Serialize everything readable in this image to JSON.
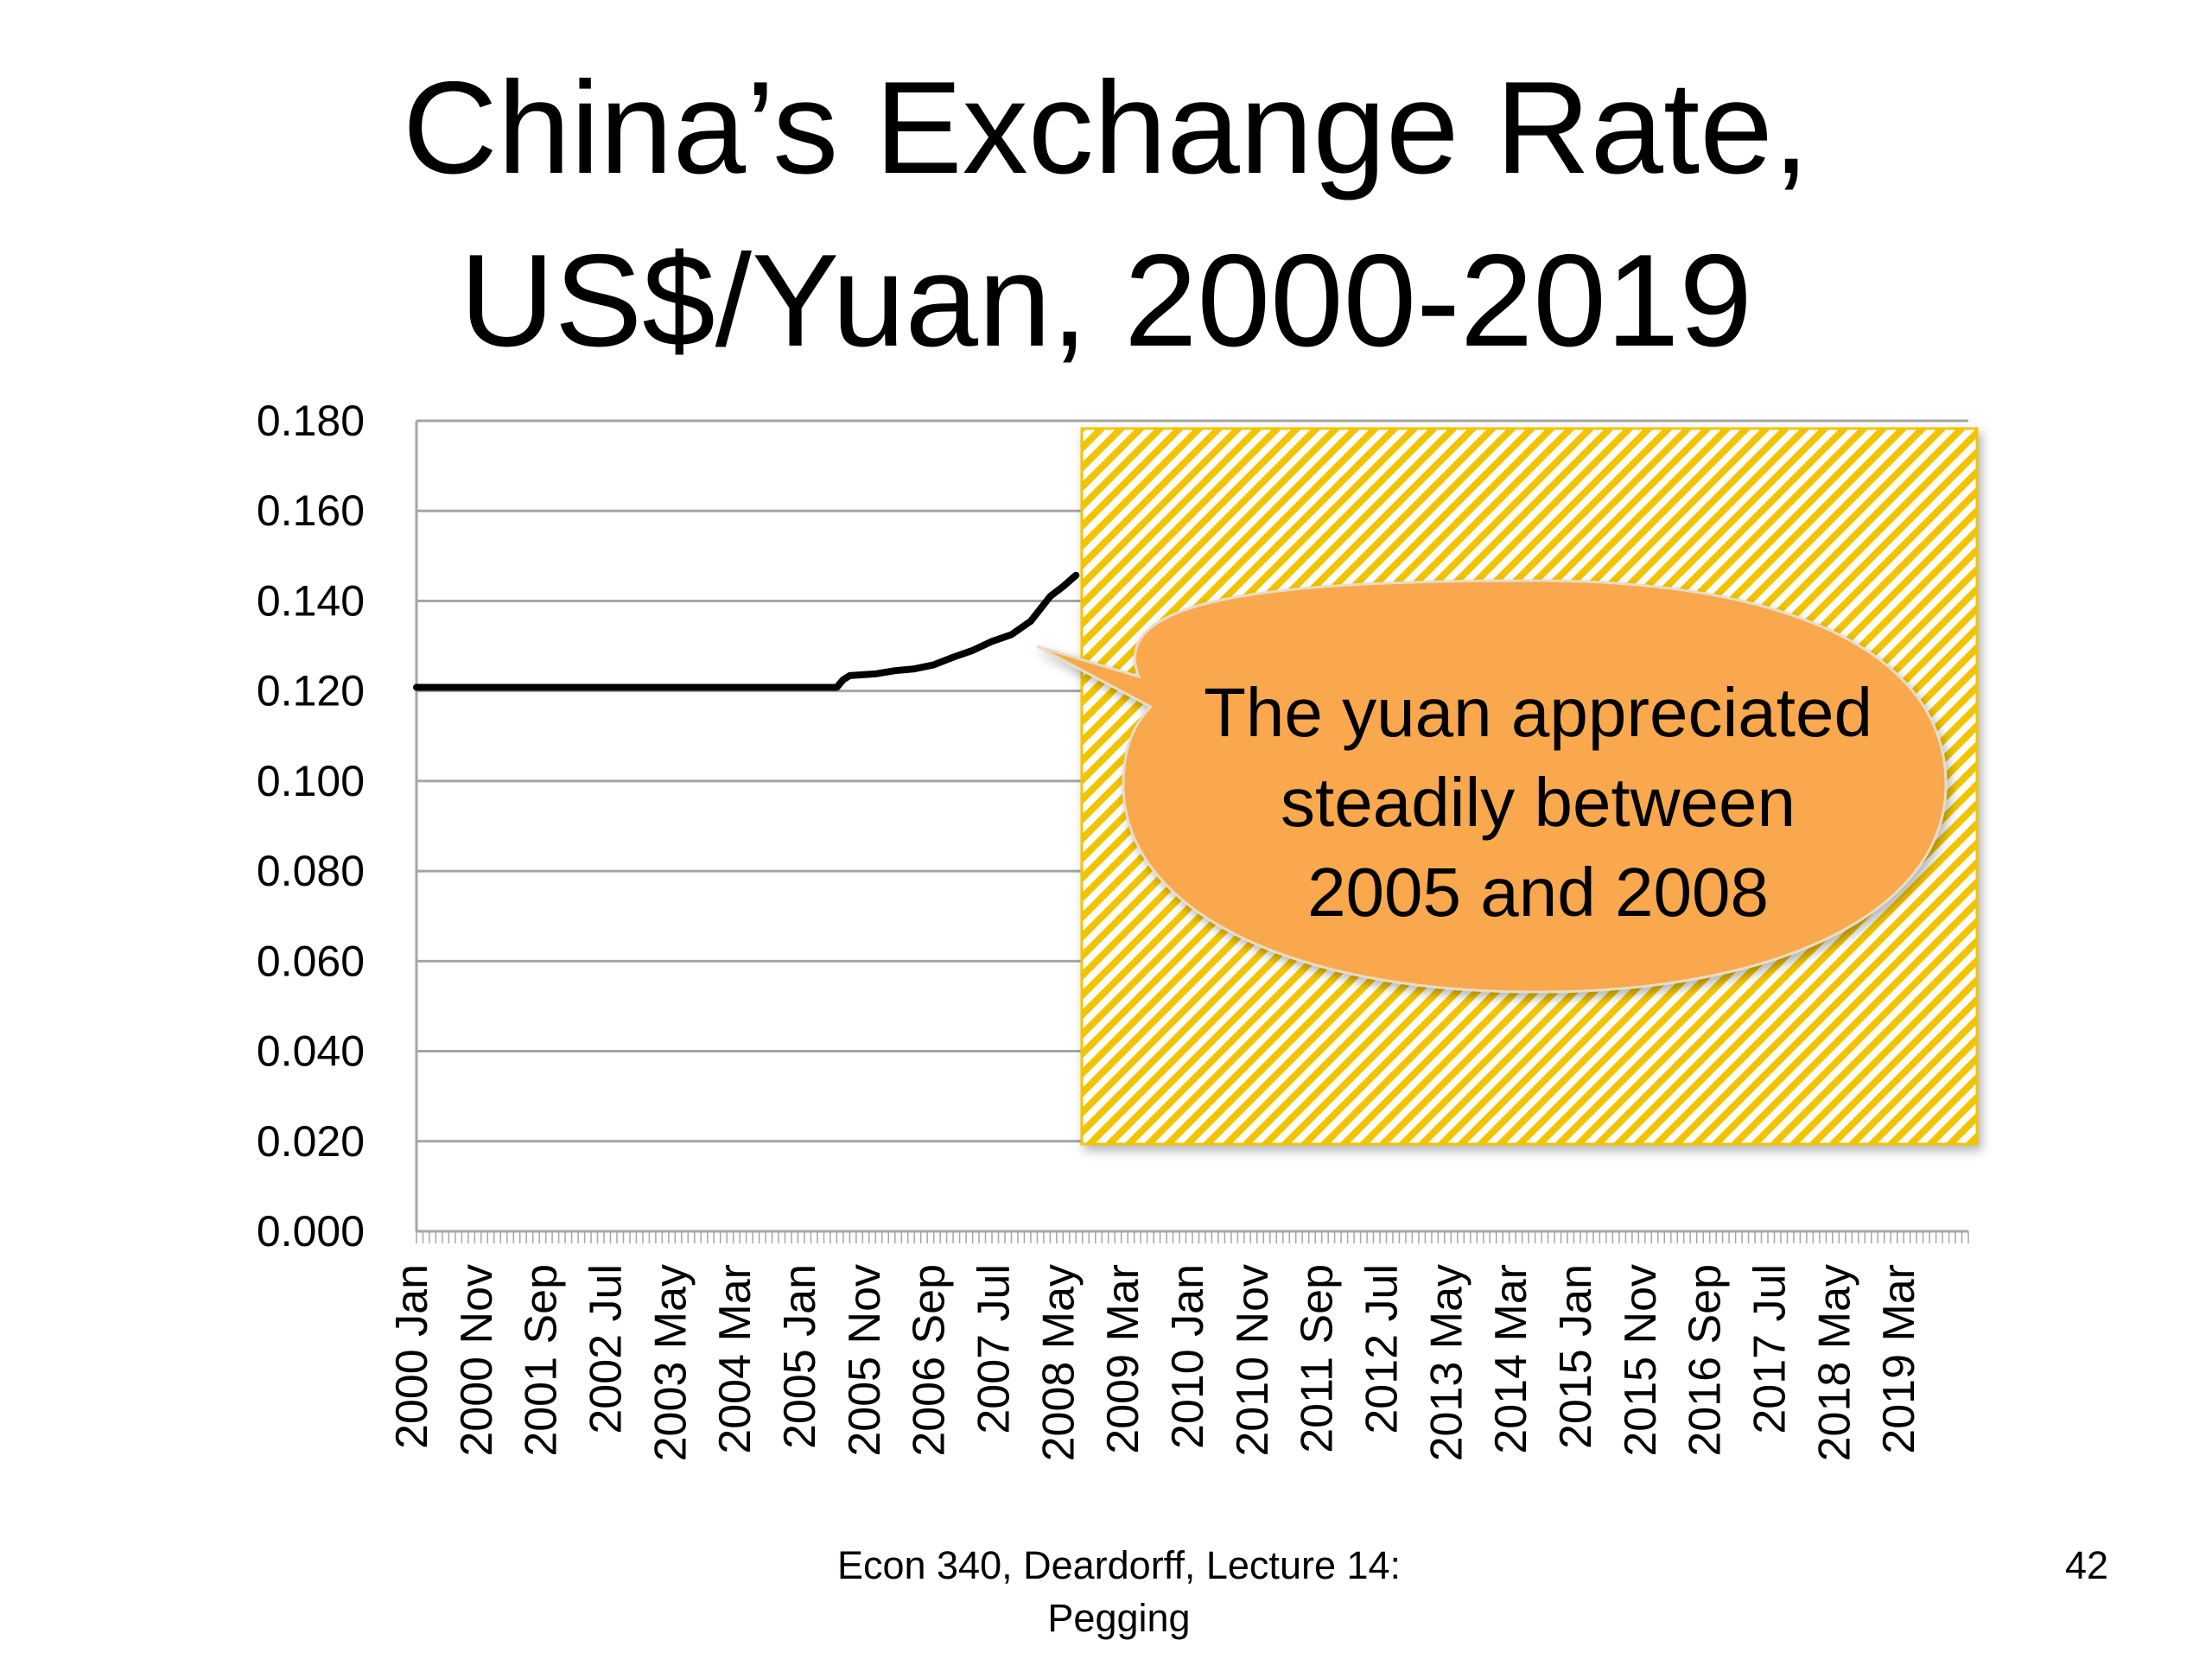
{
  "slide": {
    "title_line1": "China’s Exchange Rate,",
    "title_line2": "US$/Yuan, 2000-2019",
    "footer_line1": "Econ 340, Deardorff, Lecture 14:",
    "footer_line2": "Pegging",
    "slide_number": "42"
  },
  "callout": {
    "lines": [
      "The yuan appreciated",
      "steadily between",
      "2005 and 2008"
    ],
    "fill": "#F9A84D",
    "box_pattern_colors": [
      "#F2C400",
      "#ffffff"
    ]
  },
  "chart_data": {
    "type": "line",
    "title": "",
    "xlabel": "",
    "ylabel": "",
    "ylim": [
      0,
      0.18
    ],
    "yticks": [
      "0.000",
      "0.020",
      "0.040",
      "0.060",
      "0.080",
      "0.100",
      "0.120",
      "0.140",
      "0.160",
      "0.180"
    ],
    "x_tick_labels": [
      "2000 Jan",
      "2000 Nov",
      "2001 Sep",
      "2002 Jul",
      "2003 May",
      "2004 Mar",
      "2005 Jan",
      "2005 Nov",
      "2006 Sep",
      "2007 Jul",
      "2008 May",
      "2009 Mar",
      "2010 Jan",
      "2010 Nov",
      "2011 Sep",
      "2012 Jul",
      "2013 May",
      "2014 Mar",
      "2015 Jan",
      "2015 Nov",
      "2016 Sep",
      "2017 Jul",
      "2018 May",
      "2019 Mar"
    ],
    "x_range": [
      "2000-01",
      "2019-12"
    ],
    "grid": "horizontal",
    "line_color": "#000000",
    "series": [
      {
        "points": [
          [
            "2000-01",
            0.1208
          ],
          [
            "2001-01",
            0.1208
          ],
          [
            "2002-01",
            0.1208
          ],
          [
            "2003-01",
            0.1208
          ],
          [
            "2004-01",
            0.1208
          ],
          [
            "2005-01",
            0.1208
          ],
          [
            "2005-06",
            0.1208
          ],
          [
            "2005-07",
            0.1225
          ],
          [
            "2005-08",
            0.1234
          ],
          [
            "2005-12",
            0.1238
          ],
          [
            "2006-03",
            0.1245
          ],
          [
            "2006-06",
            0.1249
          ],
          [
            "2006-09",
            0.1258
          ],
          [
            "2006-12",
            0.1275
          ],
          [
            "2007-03",
            0.129
          ],
          [
            "2007-06",
            0.131
          ],
          [
            "2007-09",
            0.1325
          ],
          [
            "2007-12",
            0.1355
          ],
          [
            "2008-03",
            0.141
          ],
          [
            "2008-05",
            0.1432
          ],
          [
            "2008-07",
            0.1457
          ]
        ]
      }
    ]
  }
}
